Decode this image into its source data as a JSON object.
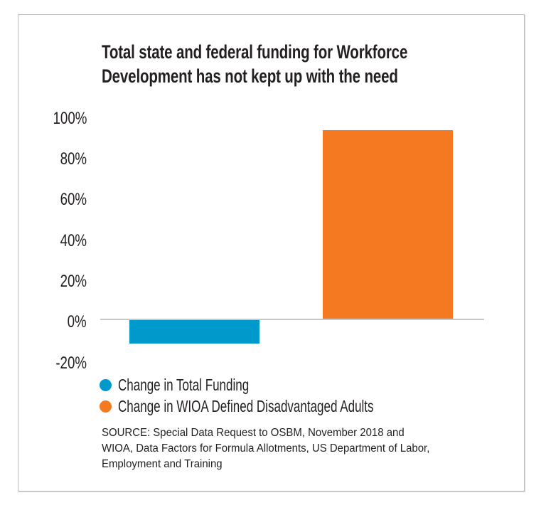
{
  "chart": {
    "title_lines": [
      "Total state and federal funding for Workforce",
      "Development has not kept up with the need"
    ],
    "y_ticks": [
      "100%",
      "80%",
      "60%",
      "40%",
      "20%",
      "0%",
      "-20%"
    ],
    "legend": [
      {
        "label": "Change in Total Funding",
        "color": "#0099cc"
      },
      {
        "label": "Change in WIOA Defined Disadvantaged Adults",
        "color": "#f47920"
      }
    ],
    "source_lines": [
      "SOURCE:  Special Data Request to OSBM, November 2018 and",
      "WIOA, Data Factors for Formula Allotments, US Department of Labor,",
      "Employment and Training"
    ]
  },
  "chart_data": {
    "type": "bar",
    "title": "Total state and federal funding for Workforce Development has not kept up with the need",
    "categories": [
      "Change in Total Funding",
      "Change in WIOA Defined Disadvantaged Adults"
    ],
    "series": [
      {
        "name": "Change in Total Funding",
        "color": "#0099cc",
        "values": [
          -12
        ]
      },
      {
        "name": "Change in WIOA Defined Disadvantaged Adults",
        "color": "#f47920",
        "values": [
          93
        ]
      }
    ],
    "values": [
      -12,
      93
    ],
    "colors": [
      "#0099cc",
      "#f47920"
    ],
    "xlabel": "",
    "ylabel": "",
    "yticks": [
      -20,
      0,
      20,
      40,
      60,
      80,
      100
    ],
    "ytick_labels": [
      "-20%",
      "0%",
      "20%",
      "40%",
      "60%",
      "80%",
      "100%"
    ],
    "ylim": [
      -20,
      100
    ],
    "grid": false,
    "zero_line": true,
    "legend_position": "bottom-left",
    "annotations": [
      "SOURCE:  Special Data Request to OSBM, November 2018 and WIOA, Data Factors for Formula Allotments, US Department of Labor, Employment and Training"
    ]
  }
}
